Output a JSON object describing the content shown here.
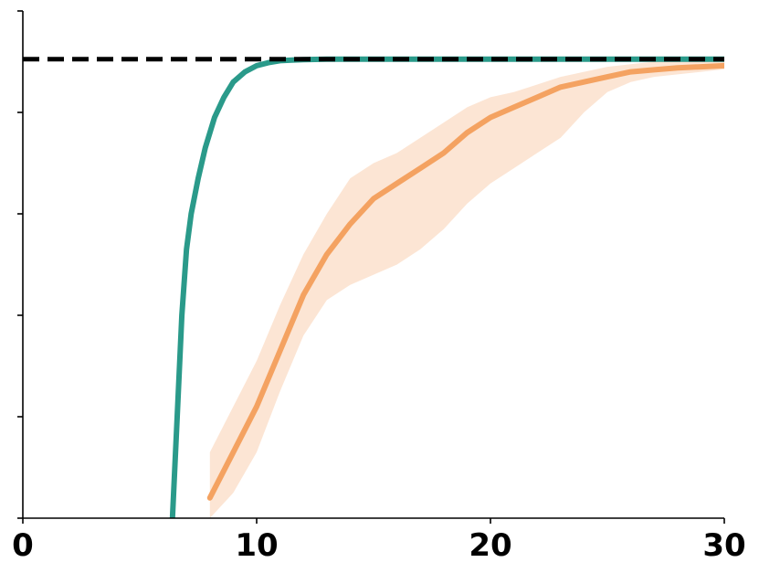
{
  "chart_data": {
    "type": "line",
    "title": "",
    "xlabel": "",
    "ylabel": "",
    "xlim": [
      0,
      30
    ],
    "ylim": [
      0,
      1.0
    ],
    "x_ticks": [
      {
        "value": 0,
        "label": "0"
      },
      {
        "value": 10,
        "label": "10"
      },
      {
        "value": 20,
        "label": "20"
      },
      {
        "value": 30,
        "label": "30"
      }
    ],
    "y_ticks": [
      0,
      0.2,
      0.4,
      0.6,
      0.8,
      1.0
    ],
    "y_tick_labels_visible": false,
    "grid": false,
    "reference_line": {
      "y": 0.905,
      "style": "dashed",
      "color": "#000000"
    },
    "series": [
      {
        "color": "#2a9a8a",
        "band": false,
        "x": [
          6.4,
          6.6,
          6.8,
          7.0,
          7.2,
          7.5,
          7.8,
          8.2,
          8.6,
          9.0,
          9.5,
          10.0,
          10.5,
          11.0,
          11.5,
          12.0,
          13.0,
          15.0,
          20.0,
          25.0,
          30.0
        ],
        "y": [
          0.0,
          0.2,
          0.4,
          0.53,
          0.6,
          0.67,
          0.73,
          0.79,
          0.83,
          0.86,
          0.88,
          0.892,
          0.898,
          0.902,
          0.903,
          0.904,
          0.905,
          0.905,
          0.905,
          0.905,
          0.905
        ]
      },
      {
        "color": "#f4a261",
        "band": true,
        "band_color": "#fbe0cc",
        "x": [
          8.0,
          9.0,
          10.0,
          11.0,
          12.0,
          13.0,
          14.0,
          15.0,
          16.0,
          17.0,
          18.0,
          19.0,
          20.0,
          21.0,
          22.0,
          23.0,
          24.0,
          25.0,
          26.0,
          27.0,
          28.0,
          29.0,
          30.0
        ],
        "y": [
          0.04,
          0.13,
          0.22,
          0.33,
          0.44,
          0.52,
          0.58,
          0.63,
          0.66,
          0.69,
          0.72,
          0.76,
          0.79,
          0.81,
          0.83,
          0.85,
          0.86,
          0.87,
          0.88,
          0.884,
          0.888,
          0.89,
          0.892
        ],
        "lower": [
          0.0,
          0.05,
          0.13,
          0.25,
          0.36,
          0.43,
          0.46,
          0.48,
          0.5,
          0.53,
          0.57,
          0.62,
          0.66,
          0.69,
          0.72,
          0.75,
          0.8,
          0.84,
          0.86,
          0.87,
          0.875,
          0.88,
          0.885
        ],
        "upper": [
          0.13,
          0.22,
          0.31,
          0.42,
          0.52,
          0.6,
          0.67,
          0.7,
          0.72,
          0.75,
          0.78,
          0.81,
          0.83,
          0.84,
          0.855,
          0.87,
          0.88,
          0.89,
          0.895,
          0.9,
          0.902,
          0.905,
          0.905
        ]
      }
    ]
  }
}
